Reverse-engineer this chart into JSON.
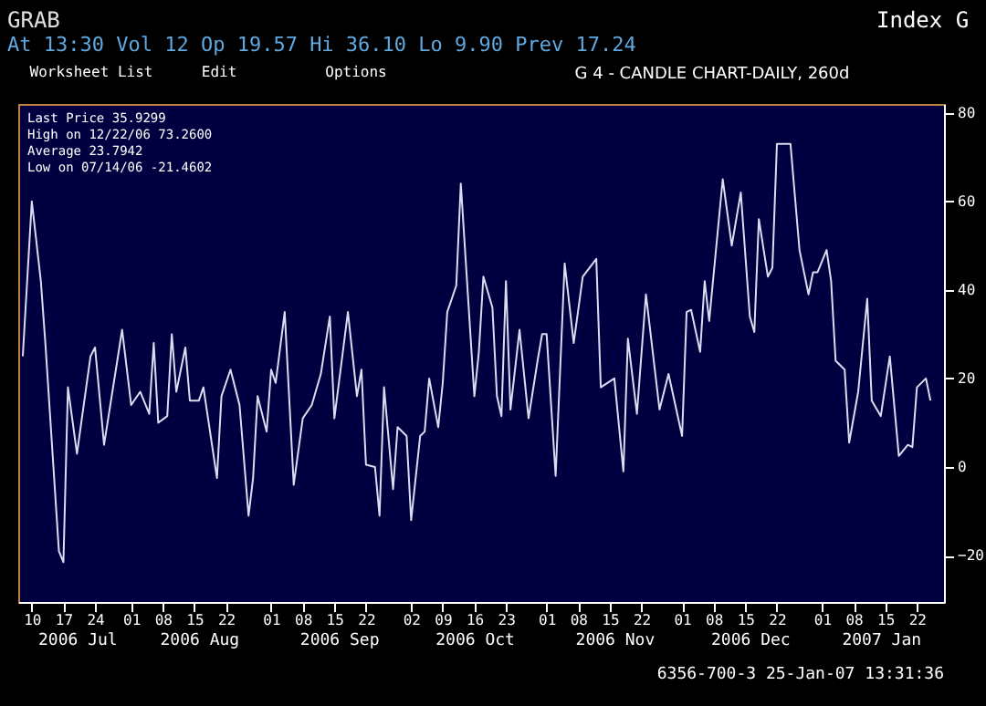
{
  "chart_data": {
    "type": "line",
    "title": "G 4 - CANDLE CHART-DAILY, 260d",
    "annotations": [
      "GRAB",
      "Index G",
      "At 13:30 Vol 12 Op 19.57 Hi 36.10 Lo 9.90 Prev 17.24",
      "Worksheet List",
      "Edit",
      "Options",
      "Last Price 35.9299",
      "High on 12/22/06 73.2600",
      "Average 23.7942",
      "Low on 07/14/06 -21.4602",
      "6356-700-3 25-Jan-07 13:31:36"
    ],
    "x": [
      "2006-07-08",
      "2006-07-10",
      "2006-07-12",
      "2006-07-13",
      "2006-07-16",
      "2006-07-17",
      "2006-07-18",
      "2006-07-20",
      "2006-07-23",
      "2006-07-24",
      "2006-07-26",
      "2006-07-30",
      "2006-08-01",
      "2006-08-03",
      "2006-08-05",
      "2006-08-06",
      "2006-08-07",
      "2006-08-09",
      "2006-08-10",
      "2006-08-11",
      "2006-08-13",
      "2006-08-14",
      "2006-08-16",
      "2006-08-17",
      "2006-08-20",
      "2006-08-21",
      "2006-08-23",
      "2006-08-25",
      "2006-08-27",
      "2006-08-28",
      "2006-08-29",
      "2006-08-31",
      "2006-09-01",
      "2006-09-02",
      "2006-09-04",
      "2006-09-06",
      "2006-09-08",
      "2006-09-10",
      "2006-09-12",
      "2006-09-14",
      "2006-09-15",
      "2006-09-18",
      "2006-09-20",
      "2006-09-21",
      "2006-09-22",
      "2006-09-24",
      "2006-09-25",
      "2006-09-26",
      "2006-09-28",
      "2006-09-29",
      "2006-10-01",
      "2006-10-02",
      "2006-10-04",
      "2006-10-05",
      "2006-10-06",
      "2006-10-08",
      "2006-10-09",
      "2006-10-10",
      "2006-10-12",
      "2006-10-13",
      "2006-10-16",
      "2006-10-17",
      "2006-10-18",
      "2006-10-20",
      "2006-10-21",
      "2006-10-22",
      "2006-10-23",
      "2006-10-24",
      "2006-10-26",
      "2006-10-28",
      "2006-10-30",
      "2006-10-31",
      "2006-11-01",
      "2006-11-03",
      "2006-11-05",
      "2006-11-07",
      "2006-11-09",
      "2006-11-12",
      "2006-11-13",
      "2006-11-16",
      "2006-11-18",
      "2006-11-19",
      "2006-11-21",
      "2006-11-23",
      "2006-11-26",
      "2006-11-28",
      "2006-12-01",
      "2006-12-02",
      "2006-12-03",
      "2006-12-05",
      "2006-12-06",
      "2006-12-07",
      "2006-12-10",
      "2006-12-12",
      "2006-12-14",
      "2006-12-16",
      "2006-12-17",
      "2006-12-18",
      "2006-12-20",
      "2006-12-21",
      "2006-12-22",
      "2006-12-25",
      "2006-12-27",
      "2006-12-29",
      "2006-12-30",
      "2006-12-31",
      "2007-01-02",
      "2007-01-03",
      "2007-01-04",
      "2007-01-06",
      "2007-01-07",
      "2007-01-09",
      "2007-01-11",
      "2007-01-12",
      "2007-01-14",
      "2007-01-16",
      "2007-01-18",
      "2007-01-20",
      "2007-01-21",
      "2007-01-22",
      "2007-01-24",
      "2007-01-25"
    ],
    "series": [
      {
        "color": "#dcdcf0",
        "values": [
          25,
          60,
          42,
          28,
          -19,
          -21.5,
          18,
          3,
          25,
          27,
          5,
          31,
          14,
          17,
          12,
          28,
          10,
          11.5,
          30,
          17,
          27,
          15,
          15,
          18,
          -2.5,
          16,
          22,
          14,
          -11,
          -2.5,
          16,
          8,
          22,
          19,
          35,
          -4,
          11,
          14,
          21,
          34,
          11,
          35,
          16,
          22,
          0.5,
          0,
          -11,
          18,
          -5,
          9,
          7,
          -12,
          7,
          8,
          20,
          9,
          19,
          35,
          41,
          64,
          16,
          26,
          43,
          36,
          16,
          11.5,
          42,
          13,
          31,
          11,
          24,
          30,
          30,
          -2,
          46,
          28,
          43,
          47,
          18,
          20,
          -1,
          29,
          12,
          39,
          13,
          21,
          7,
          35,
          35.5,
          26,
          42,
          33,
          65,
          50,
          62,
          34,
          30.5,
          56,
          43,
          45,
          73,
          73,
          49,
          39,
          44,
          44,
          49,
          42,
          24,
          22,
          5.5,
          17,
          38,
          15,
          11.5,
          25,
          2.5,
          5,
          4.5,
          18,
          20,
          15
        ]
      }
    ],
    "xlim": [
      "2006-07-07",
      "2007-01-28"
    ],
    "xticks": [
      {
        "value": "2006-07-10",
        "label": "10"
      },
      {
        "value": "2006-07-17",
        "label": "17"
      },
      {
        "value": "2006-07-24",
        "label": "24"
      },
      {
        "value": "2006-08-01",
        "label": "01"
      },
      {
        "value": "2006-08-08",
        "label": "08"
      },
      {
        "value": "2006-08-15",
        "label": "15"
      },
      {
        "value": "2006-08-22",
        "label": "22"
      },
      {
        "value": "2006-09-01",
        "label": "01"
      },
      {
        "value": "2006-09-08",
        "label": "08"
      },
      {
        "value": "2006-09-15",
        "label": "15"
      },
      {
        "value": "2006-09-22",
        "label": "22"
      },
      {
        "value": "2006-10-02",
        "label": "02"
      },
      {
        "value": "2006-10-09",
        "label": "09"
      },
      {
        "value": "2006-10-16",
        "label": "16"
      },
      {
        "value": "2006-10-23",
        "label": "23"
      },
      {
        "value": "2006-11-01",
        "label": "01"
      },
      {
        "value": "2006-11-08",
        "label": "08"
      },
      {
        "value": "2006-11-15",
        "label": "15"
      },
      {
        "value": "2006-11-22",
        "label": "22"
      },
      {
        "value": "2006-12-01",
        "label": "01"
      },
      {
        "value": "2006-12-08",
        "label": "08"
      },
      {
        "value": "2006-12-15",
        "label": "15"
      },
      {
        "value": "2006-12-22",
        "label": "22"
      },
      {
        "value": "2007-01-01",
        "label": "01"
      },
      {
        "value": "2007-01-08",
        "label": "08"
      },
      {
        "value": "2007-01-15",
        "label": "15"
      },
      {
        "value": "2007-01-22",
        "label": "22"
      }
    ],
    "x2ticks": [
      {
        "value": "2006-07-20",
        "label": "2006 Jul"
      },
      {
        "value": "2006-08-16",
        "label": "2006 Aug"
      },
      {
        "value": "2006-09-16",
        "label": "2006 Sep"
      },
      {
        "value": "2006-10-16",
        "label": "2006 Oct"
      },
      {
        "value": "2006-11-16",
        "label": "2006 Nov"
      },
      {
        "value": "2006-12-16",
        "label": "2006 Dec"
      },
      {
        "value": "2007-01-14",
        "label": "2007 Jan"
      }
    ],
    "ylim": [
      -30.5,
      82
    ],
    "yticks": [
      -20,
      0,
      20,
      40,
      60,
      80
    ],
    "x2lim": [
      "2006-07-07",
      "2007-01-28"
    ],
    "grid": false,
    "marker": "none",
    "line_style": "solid"
  }
}
